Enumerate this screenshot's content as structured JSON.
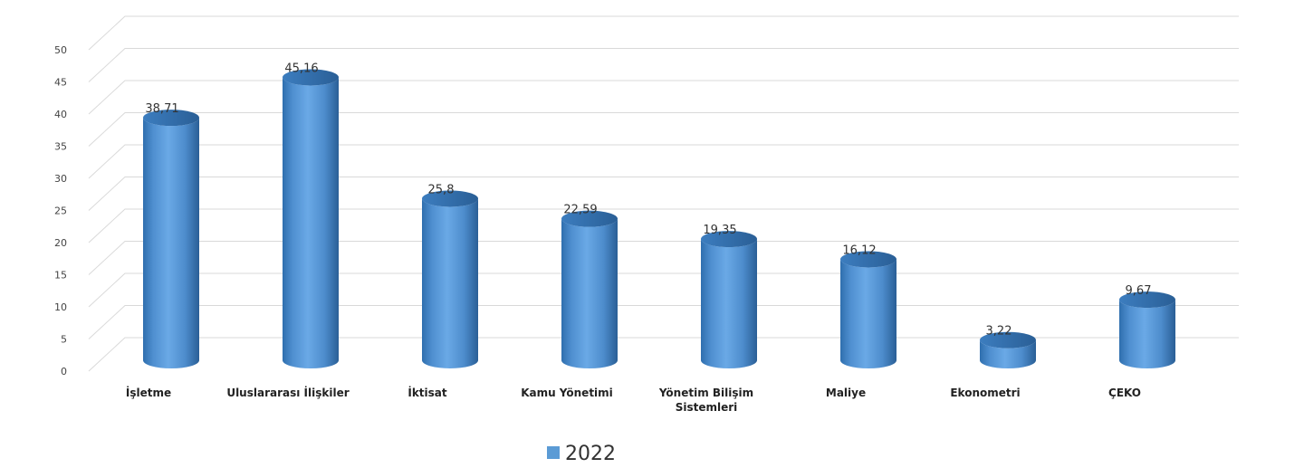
{
  "chart_data": {
    "type": "bar",
    "style": "3d-cylinder",
    "categories": [
      "İşletme",
      "Uluslararası İlişkiler",
      "İktisat",
      "Kamu Yönetimi",
      "Yönetim Bilişim Sistemleri",
      "Maliye",
      "Ekonometri",
      "ÇEKO"
    ],
    "series": [
      {
        "name": "2022",
        "color": "#5b9bd5",
        "values": [
          38.71,
          45.16,
          25.8,
          22.59,
          19.35,
          16.12,
          3.22,
          9.67
        ],
        "value_labels": [
          "38,71",
          "45,16",
          "25,8",
          "22,59",
          "19,35",
          "16,12",
          "3,22",
          "9,67"
        ]
      }
    ],
    "ylim": [
      0,
      50
    ],
    "yticks": [
      0,
      5,
      10,
      15,
      20,
      25,
      30,
      35,
      40,
      45,
      50
    ],
    "grid": true,
    "legend_position": "bottom-center"
  }
}
